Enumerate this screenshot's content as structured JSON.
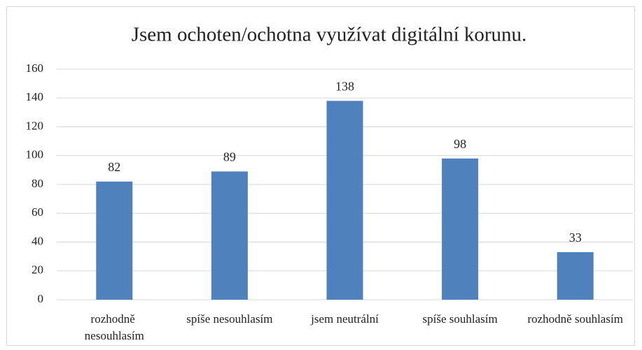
{
  "chart_data": {
    "type": "bar",
    "title": "Jsem ochoten/ochotna využívat digitální korunu.",
    "categories": [
      "rozhodně nesouhlasím",
      "spíše nesouhlasím",
      "jsem neutrální",
      "spíše souhlasím",
      "rozhodně souhlasím"
    ],
    "values": [
      82,
      89,
      138,
      98,
      33
    ],
    "color": "#4f81bd",
    "ylim": [
      0,
      160
    ],
    "yticks": [
      0,
      20,
      40,
      60,
      80,
      100,
      120,
      140,
      160
    ],
    "grid": true
  }
}
